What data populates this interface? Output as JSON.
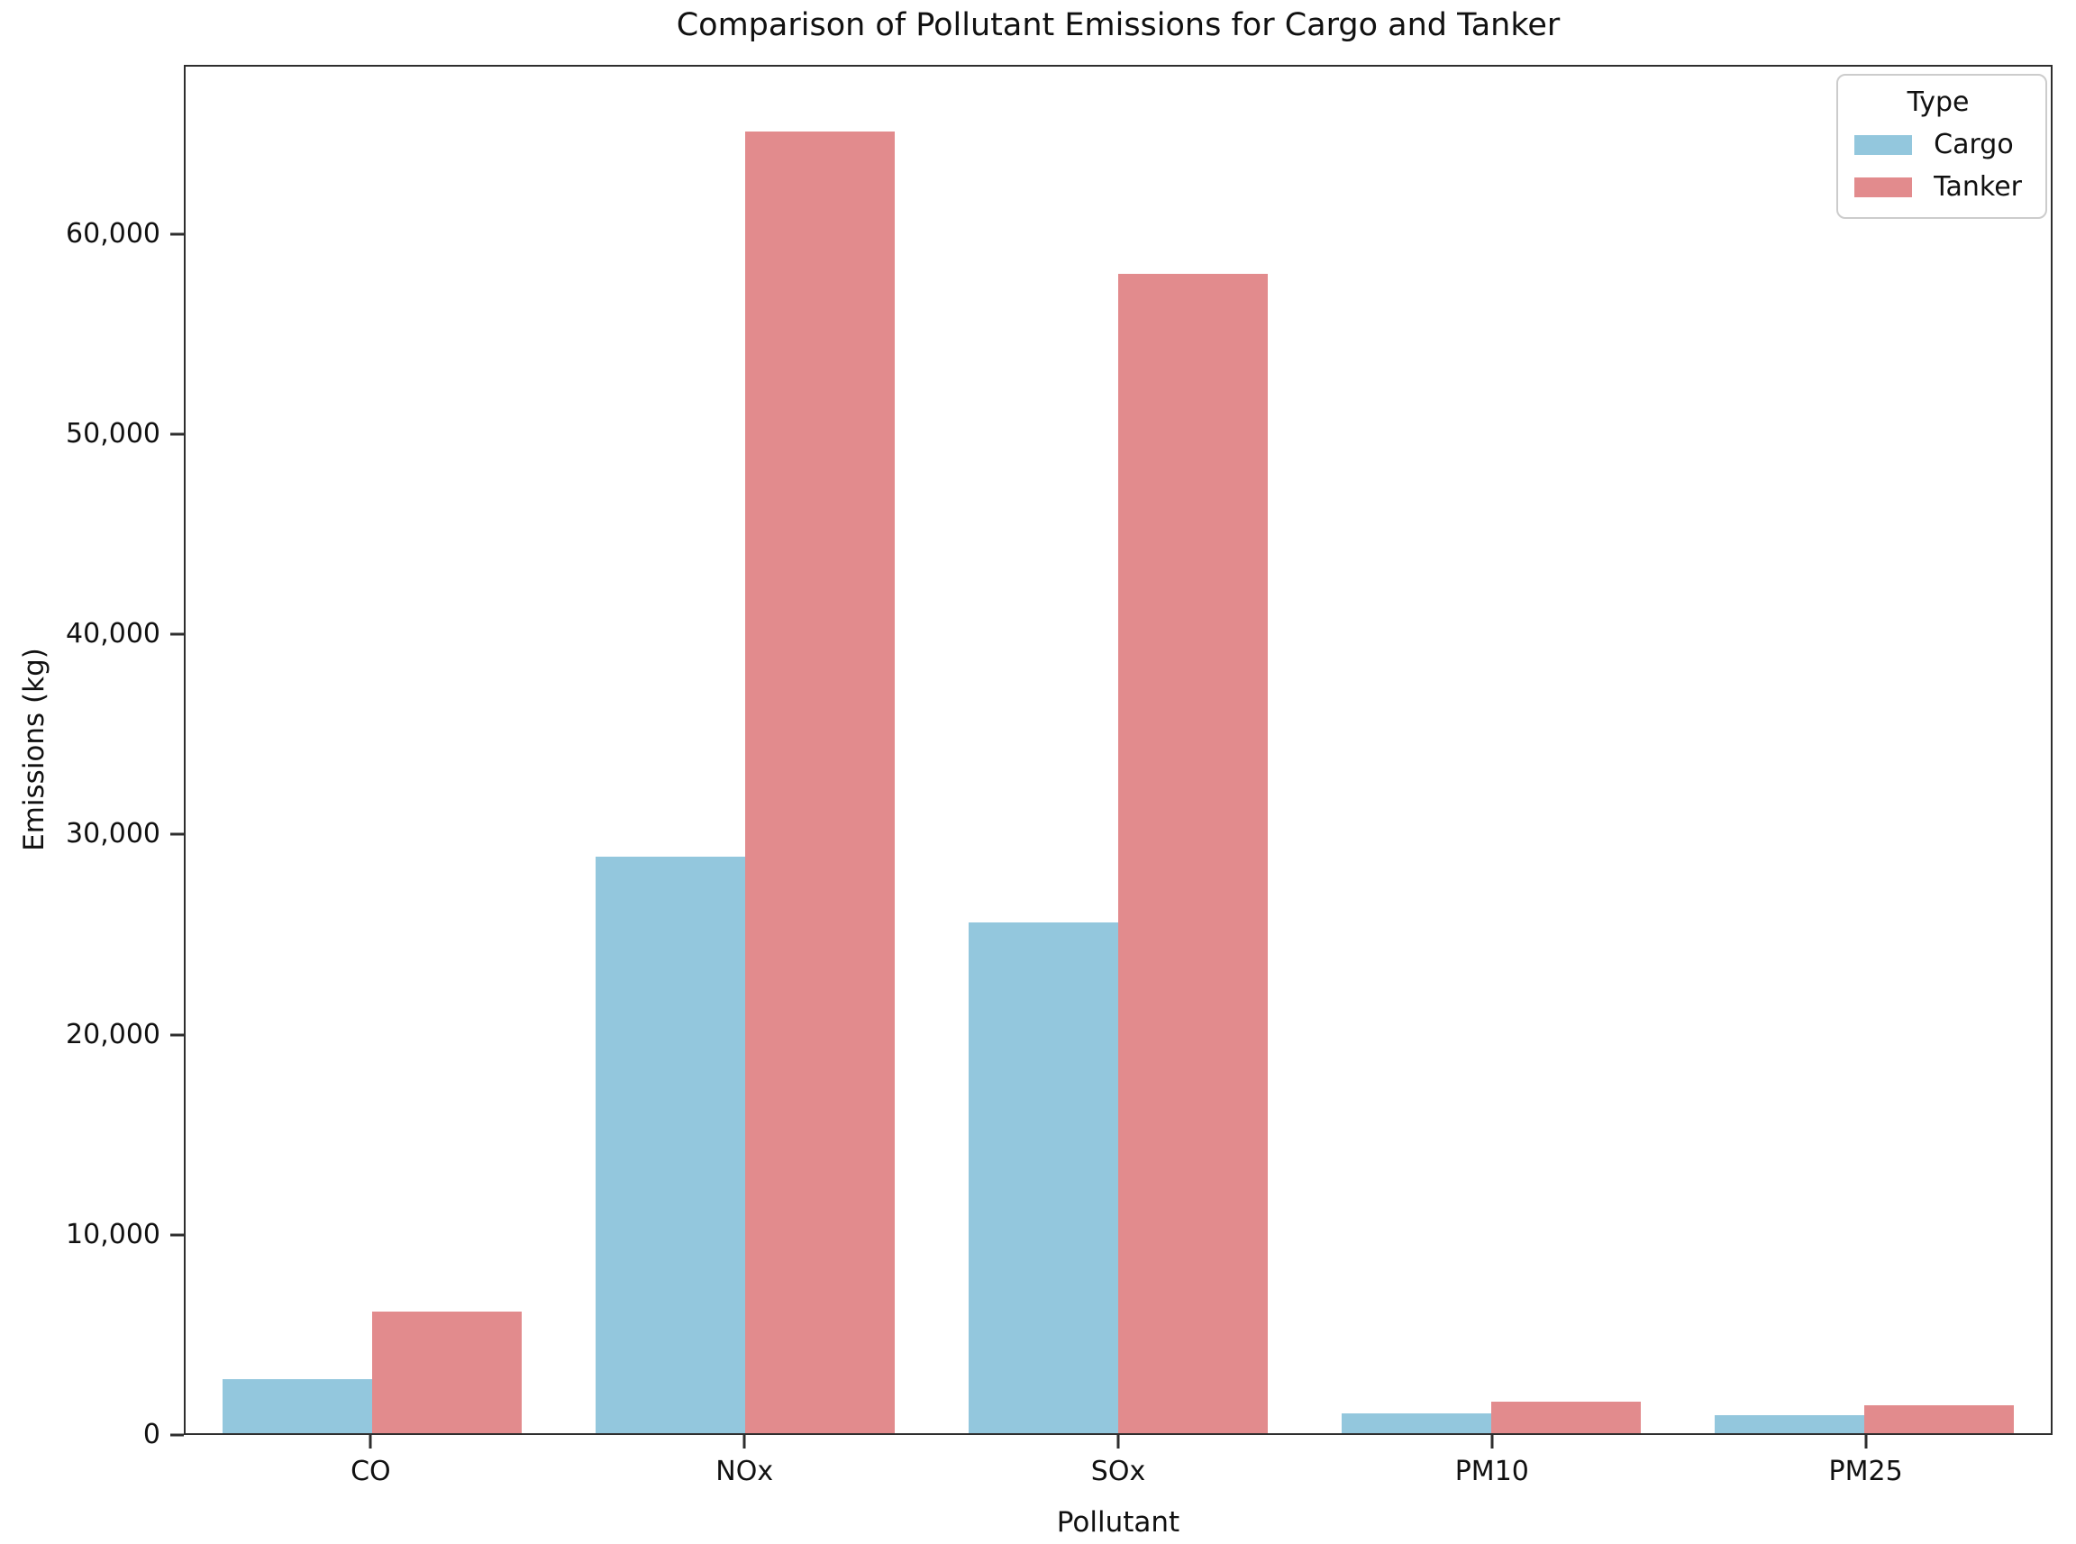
{
  "chart_data": {
    "type": "bar",
    "title": "Comparison of Pollutant Emissions for Cargo and Tanker",
    "xlabel": "Pollutant",
    "ylabel": "Emissions (kg)",
    "categories": [
      "CO",
      "NOx",
      "SOx",
      "PM10",
      "PM25"
    ],
    "series": [
      {
        "name": "Cargo",
        "color": "#93c7dd",
        "values": [
          2700,
          28900,
          25600,
          1000,
          900
        ]
      },
      {
        "name": "Tanker",
        "color": "#e28b8d",
        "values": [
          6100,
          65200,
          58100,
          1600,
          1400
        ]
      }
    ],
    "ylim": [
      0,
      68460
    ],
    "yticks": [
      {
        "value": 0,
        "label": "0"
      },
      {
        "value": 10000,
        "label": "10,000"
      },
      {
        "value": 20000,
        "label": "20,000"
      },
      {
        "value": 30000,
        "label": "30,000"
      },
      {
        "value": 40000,
        "label": "40,000"
      },
      {
        "value": 50000,
        "label": "50,000"
      },
      {
        "value": 60000,
        "label": "60,000"
      }
    ],
    "grid": false,
    "legend": {
      "title": "Type",
      "position": "upper right"
    }
  }
}
